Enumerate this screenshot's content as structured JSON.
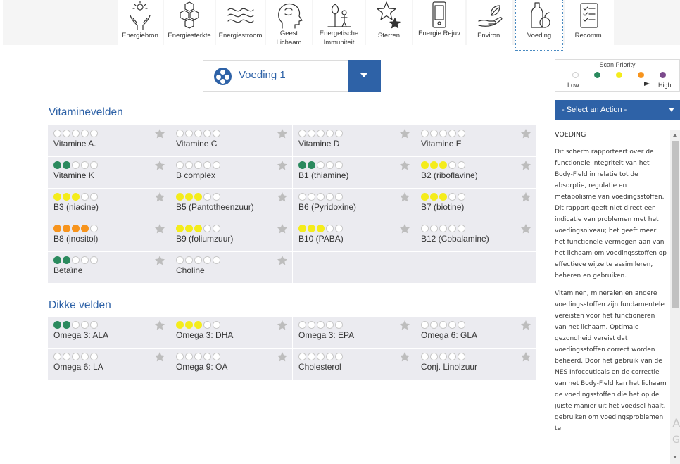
{
  "nav": [
    {
      "label": "Energiebron",
      "icon": "hands-sun-icon"
    },
    {
      "label": "Energiesterkte",
      "icon": "hexagons-icon"
    },
    {
      "label": "Energiestroom",
      "icon": "waves-icon"
    },
    {
      "label": "Geest Lichaam",
      "icon": "head-brain-icon"
    },
    {
      "label": "Energetische Immuniteit",
      "icon": "tree-figure-icon"
    },
    {
      "label": "Sterren",
      "icon": "stars-icon"
    },
    {
      "label": "Energie Rejuv",
      "icon": "phone-icon"
    },
    {
      "label": "Environ.",
      "icon": "hand-leaf-icon"
    },
    {
      "label": "Voeding",
      "icon": "fruit-bottle-icon",
      "active": true
    },
    {
      "label": "Recomm.",
      "icon": "checklist-icon"
    }
  ],
  "dropdown": {
    "value": "Voeding 1"
  },
  "legend": {
    "title": "Scan Priority",
    "low": "Low",
    "high": "High",
    "colors": [
      "#ffffff",
      "#2b8a5e",
      "#f4ec1b",
      "#f7941d",
      "#7c4a8c"
    ]
  },
  "action": {
    "label": "- Select an Action -"
  },
  "info": {
    "title": "VOEDING",
    "paragraphs": [
      "Dit scherm rapporteert over de functionele integriteit van het Body-Field in relatie tot de absorptie, regulatie en metabolisme van voedingsstoffen. Dit rapport geeft niet direct een indicatie van problemen met het voedingsniveau; het geeft meer het functionele vermogen aan van het lichaam om voedingsstoffen op effectieve wijze te assimileren, beheren en gebruiken.",
      "Vitaminen, mineralen en andere voedingsstoffen zijn fundamentele vereisten voor het functioneren van het lichaam. Optimale gezondheid vereist dat voedingsstoffen correct worden beheerd. Door het gebruik van de NES Infoceuticals en de correctie van het Body-Field kan het lichaam de voedingsstoffen die het op de juiste manier uit het voedsel haalt, gebruiken om voedingsproblemen te"
    ]
  },
  "watermark": [
    "A",
    "G"
  ],
  "sections": [
    {
      "title": "Vitaminevelden",
      "items": [
        {
          "name": "Vitamine A.",
          "level": 0,
          "color": "#2b8a5e"
        },
        {
          "name": "Vitamine C",
          "level": 0,
          "color": "#2b8a5e"
        },
        {
          "name": "Vitamine D",
          "level": 0,
          "color": "#2b8a5e"
        },
        {
          "name": "Vitamine E",
          "level": 0,
          "color": "#2b8a5e"
        },
        {
          "name": "Vitamine K",
          "level": 2,
          "color": "#2b8a5e"
        },
        {
          "name": "B complex",
          "level": 0,
          "color": "#2b8a5e"
        },
        {
          "name": "B1 (thiamine)",
          "level": 2,
          "color": "#2b8a5e"
        },
        {
          "name": "B2 (riboflavine)",
          "level": 3,
          "color": "#f4ec1b"
        },
        {
          "name": "B3 (niacine)",
          "level": 3,
          "color": "#f4ec1b"
        },
        {
          "name": "B5 (Pantotheenzuur)",
          "level": 3,
          "color": "#f4ec1b"
        },
        {
          "name": "B6 (Pyridoxine)",
          "level": 0,
          "color": "#2b8a5e"
        },
        {
          "name": "B7 (biotine)",
          "level": 3,
          "color": "#f4ec1b"
        },
        {
          "name": "B8 (inositol)",
          "level": 4,
          "color": "#f7941d"
        },
        {
          "name": "B9 (foliumzuur)",
          "level": 3,
          "color": "#f4ec1b"
        },
        {
          "name": "B10 (PABA)",
          "level": 3,
          "color": "#f4ec1b"
        },
        {
          "name": "B12 (Cobalamine)",
          "level": 0,
          "color": "#2b8a5e"
        },
        {
          "name": "Betaïne",
          "level": 2,
          "color": "#2b8a5e"
        },
        {
          "name": "Choline",
          "level": 0,
          "color": "#2b8a5e"
        }
      ]
    },
    {
      "title": "Dikke velden",
      "items": [
        {
          "name": "Omega 3: ALA",
          "level": 2,
          "color": "#2b8a5e"
        },
        {
          "name": "Omega 3: DHA",
          "level": 3,
          "color": "#f4ec1b"
        },
        {
          "name": "Omega 3: EPA",
          "level": 0,
          "color": "#2b8a5e"
        },
        {
          "name": "Omega 6: GLA",
          "level": 0,
          "color": "#2b8a5e"
        },
        {
          "name": "Omega 6: LA",
          "level": 0,
          "color": "#2b8a5e"
        },
        {
          "name": "Omega 9: OA",
          "level": 0,
          "color": "#2b8a5e"
        },
        {
          "name": "Cholesterol",
          "level": 0,
          "color": "#2b8a5e"
        },
        {
          "name": "Conj. Linolzuur",
          "level": 0,
          "color": "#2b8a5e"
        }
      ]
    }
  ]
}
